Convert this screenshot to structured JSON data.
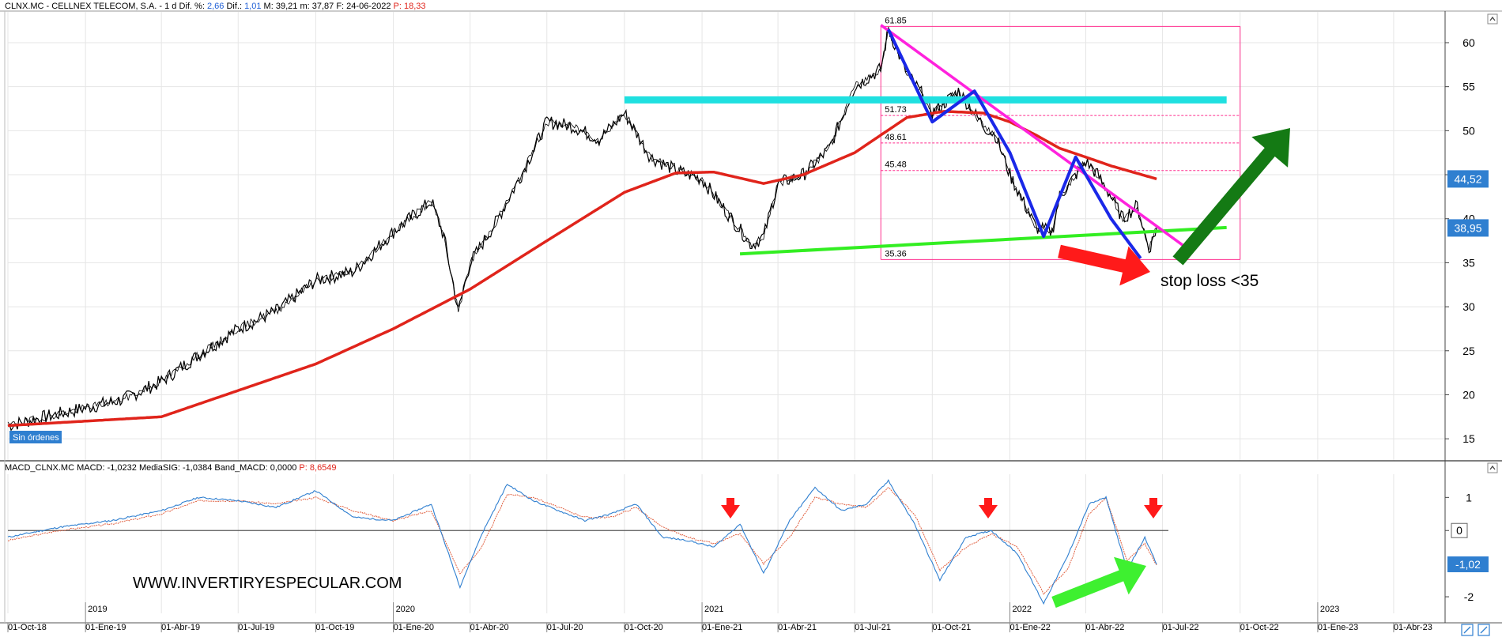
{
  "header": {
    "symbol": "CLNX.MC - CELLNEX TELECOM, S.A. -  1 d",
    "dif_pct_label": "Dif. %:",
    "dif_pct": "2,66",
    "dif_label": "Dif.:",
    "dif": "1,01",
    "max_label": "M:",
    "max": "39,21",
    "min_label": "m:",
    "min": "37,87",
    "date_label": "F:",
    "date": "24-06-2022",
    "p_label": "P:",
    "p": "18,33"
  },
  "macd_header": {
    "name": "MACD_CLNX.MC",
    "macd_label": "MACD:",
    "macd": "-1,0232",
    "signal_label": "MediaSIG:",
    "signal": "-1,0384",
    "band_label": "Band_MACD:",
    "band": "0,0000",
    "p_label": "P:",
    "p": "8,6549"
  },
  "badges": {
    "orders": "Sin órdenes",
    "price_ma": "44,52",
    "price_last": "38,95",
    "macd_zero": "0",
    "macd_last": "-1,02"
  },
  "annotations": {
    "stop_loss": "stop loss <35",
    "website": "WWW.INVERTIRYESPECULAR.COM"
  },
  "fib_labels": [
    "61.85",
    "51.73",
    "48.61",
    "45.48",
    "35.36"
  ],
  "colors": {
    "candles": "#000000",
    "ma": "#e0241b",
    "resistance": "#1fe0e0",
    "trendline": "#ff22dd",
    "zigzag": "#1a28e8",
    "support": "#33ee22",
    "fib": "#ff2f8f",
    "macd": "#2f7fd0",
    "macd_signal": "#e06040",
    "badge": "#2f7fd0",
    "arrow_red": "#ff1a1a",
    "arrow_green": "#147a14",
    "arrow_light_green": "#3ef030"
  },
  "chart_data": [
    {
      "type": "line",
      "panel": "price",
      "x_ticks": [
        "01-Oct-18",
        "01-Ene-19",
        "01-Abr-19",
        "01-Jul-19",
        "01-Oct-19",
        "01-Ene-20",
        "01-Abr-20",
        "01-Jul-20",
        "01-Oct-20",
        "01-Ene-21",
        "01-Abr-21",
        "01-Jul-21",
        "01-Oct-21",
        "01-Ene-22",
        "01-Abr-22",
        "01-Jul-22",
        "01-Oct-22",
        "01-Ene-23",
        "01-Abr-23"
      ],
      "year_labels": [
        "2019",
        "2020",
        "2021",
        "2022",
        "2023"
      ],
      "y_ticks": [
        15,
        20,
        25,
        30,
        35,
        40,
        45,
        50,
        55,
        60
      ],
      "ylim": [
        12.5,
        63.5
      ],
      "grid": true,
      "series": [
        {
          "kind": "close",
          "x": [
            "2018-10-01",
            "2018-11-15",
            "2019-01-01",
            "2019-02-15",
            "2019-04-01",
            "2019-05-15",
            "2019-07-01",
            "2019-08-15",
            "2019-10-01",
            "2019-11-15",
            "2020-01-01",
            "2020-02-15",
            "2020-03-01",
            "2020-03-18",
            "2020-04-01",
            "2020-05-01",
            "2020-06-01",
            "2020-07-01",
            "2020-08-01",
            "2020-09-01",
            "2020-10-01",
            "2020-11-01",
            "2020-12-01",
            "2021-01-01",
            "2021-02-01",
            "2021-03-01",
            "2021-03-15",
            "2021-04-01",
            "2021-05-01",
            "2021-06-01",
            "2021-07-01",
            "2021-08-01",
            "2021-08-10",
            "2021-09-01",
            "2021-09-20",
            "2021-10-01",
            "2021-11-01",
            "2021-12-01",
            "2021-12-15",
            "2022-01-01",
            "2022-02-01",
            "2022-02-20",
            "2022-03-01",
            "2022-04-01",
            "2022-04-15",
            "2022-05-01",
            "2022-05-15",
            "2022-06-01",
            "2022-06-15",
            "2022-06-24"
          ],
          "values": [
            16.5,
            17.5,
            18.5,
            19.5,
            21.5,
            24.5,
            27.5,
            29.5,
            33.0,
            34.0,
            38.5,
            42.0,
            38.0,
            29.5,
            35.0,
            39.5,
            45.0,
            51.0,
            50.5,
            49.0,
            52.0,
            47.0,
            45.5,
            44.5,
            40.5,
            37.0,
            38.0,
            44.0,
            45.0,
            48.0,
            55.0,
            57.0,
            61.5,
            56.5,
            54.0,
            52.0,
            54.5,
            50.5,
            49.5,
            45.0,
            39.0,
            38.5,
            42.5,
            46.5,
            45.0,
            42.5,
            40.0,
            41.5,
            36.5,
            38.95
          ]
        },
        {
          "kind": "moving-average",
          "x": [
            "2018-10-01",
            "2019-04-01",
            "2019-10-01",
            "2020-01-01",
            "2020-04-01",
            "2020-07-01",
            "2020-10-01",
            "2020-12-01",
            "2021-01-15",
            "2021-03-15",
            "2021-05-01",
            "2021-07-01",
            "2021-09-01",
            "2021-10-15",
            "2021-12-01",
            "2022-01-01",
            "2022-02-01",
            "2022-03-01",
            "2022-04-01",
            "2022-05-01",
            "2022-06-24"
          ],
          "values": [
            16.5,
            17.5,
            23.5,
            27.5,
            32.0,
            37.5,
            43.0,
            45.2,
            45.3,
            44.0,
            45.0,
            47.5,
            51.5,
            52.2,
            52.0,
            51.0,
            49.5,
            48.0,
            47.0,
            46.0,
            44.52
          ]
        }
      ],
      "overlays": {
        "resistance": {
          "x": [
            "2020-10-01",
            "2022-09-15"
          ],
          "values": [
            53.5,
            53.5
          ]
        },
        "support": {
          "x": [
            "2021-02-15",
            "2022-09-15"
          ],
          "values": [
            36.0,
            39.0
          ]
        },
        "downtrend": {
          "x": [
            "2021-08-01",
            "2022-08-01"
          ],
          "values": [
            62.0,
            36.5
          ]
        },
        "zigzag": {
          "x": [
            "2021-08-10",
            "2021-10-01",
            "2021-11-20",
            "2022-01-01",
            "2022-02-10",
            "2022-03-20",
            "2022-05-01",
            "2022-06-05"
          ],
          "values": [
            61.5,
            51.0,
            54.5,
            47.5,
            38.0,
            47.0,
            40.0,
            35.5
          ]
        },
        "fibonacci": {
          "x_start": "2021-08-01",
          "x_end": "2022-10-01",
          "levels": [
            61.85,
            51.73,
            48.61,
            45.48,
            35.36
          ]
        }
      }
    },
    {
      "type": "line",
      "panel": "macd",
      "y_ticks": [
        -2,
        0,
        1
      ],
      "ylim": [
        -2.5,
        1.7
      ],
      "zero_line": 0,
      "series": [
        {
          "kind": "macd",
          "x": [
            "2018-10-01",
            "2018-12-01",
            "2019-02-01",
            "2019-04-01",
            "2019-05-15",
            "2019-07-01",
            "2019-08-15",
            "2019-10-01",
            "2019-11-15",
            "2020-01-01",
            "2020-02-15",
            "2020-03-20",
            "2020-04-15",
            "2020-05-15",
            "2020-06-15",
            "2020-07-15",
            "2020-08-15",
            "2020-09-15",
            "2020-10-15",
            "2020-11-15",
            "2020-12-15",
            "2021-01-15",
            "2021-02-15",
            "2021-03-15",
            "2021-04-15",
            "2021-05-15",
            "2021-06-15",
            "2021-07-15",
            "2021-08-10",
            "2021-09-10",
            "2021-10-10",
            "2021-11-10",
            "2021-12-10",
            "2022-01-10",
            "2022-02-10",
            "2022-03-10",
            "2022-04-05",
            "2022-04-25",
            "2022-05-20",
            "2022-06-10",
            "2022-06-24"
          ],
          "values": [
            -0.2,
            0.1,
            0.3,
            0.6,
            1.0,
            0.9,
            0.7,
            1.2,
            0.4,
            0.3,
            0.8,
            -1.7,
            -0.1,
            1.4,
            0.9,
            0.6,
            0.3,
            0.5,
            0.8,
            -0.2,
            -0.3,
            -0.5,
            0.2,
            -1.3,
            0.3,
            1.3,
            0.6,
            0.8,
            1.5,
            0.2,
            -1.5,
            -0.2,
            0.0,
            -0.7,
            -2.2,
            -0.8,
            0.8,
            1.0,
            -1.2,
            -0.2,
            -1.02
          ]
        },
        {
          "kind": "signal",
          "x": [
            "2018-10-01",
            "2018-12-01",
            "2019-02-01",
            "2019-04-01",
            "2019-05-15",
            "2019-07-01",
            "2019-08-15",
            "2019-10-01",
            "2019-11-15",
            "2020-01-01",
            "2020-02-15",
            "2020-03-20",
            "2020-04-15",
            "2020-05-15",
            "2020-06-15",
            "2020-07-15",
            "2020-08-15",
            "2020-09-15",
            "2020-10-15",
            "2020-11-15",
            "2020-12-15",
            "2021-01-15",
            "2021-02-15",
            "2021-03-15",
            "2021-04-15",
            "2021-05-15",
            "2021-06-15",
            "2021-07-15",
            "2021-08-10",
            "2021-09-10",
            "2021-10-10",
            "2021-11-10",
            "2021-12-10",
            "2022-01-10",
            "2022-02-10",
            "2022-03-10",
            "2022-04-05",
            "2022-04-25",
            "2022-05-20",
            "2022-06-10",
            "2022-06-24"
          ],
          "values": [
            -0.3,
            0.0,
            0.2,
            0.5,
            0.9,
            0.9,
            0.8,
            1.0,
            0.6,
            0.3,
            0.6,
            -1.3,
            -0.5,
            1.1,
            1.0,
            0.7,
            0.4,
            0.4,
            0.7,
            0.1,
            -0.2,
            -0.4,
            -0.1,
            -1.0,
            -0.2,
            1.0,
            0.8,
            0.7,
            1.3,
            0.5,
            -1.2,
            -0.5,
            -0.1,
            -0.5,
            -1.9,
            -1.2,
            0.5,
            1.0,
            -0.9,
            -0.4,
            -1.04
          ]
        }
      ]
    }
  ]
}
